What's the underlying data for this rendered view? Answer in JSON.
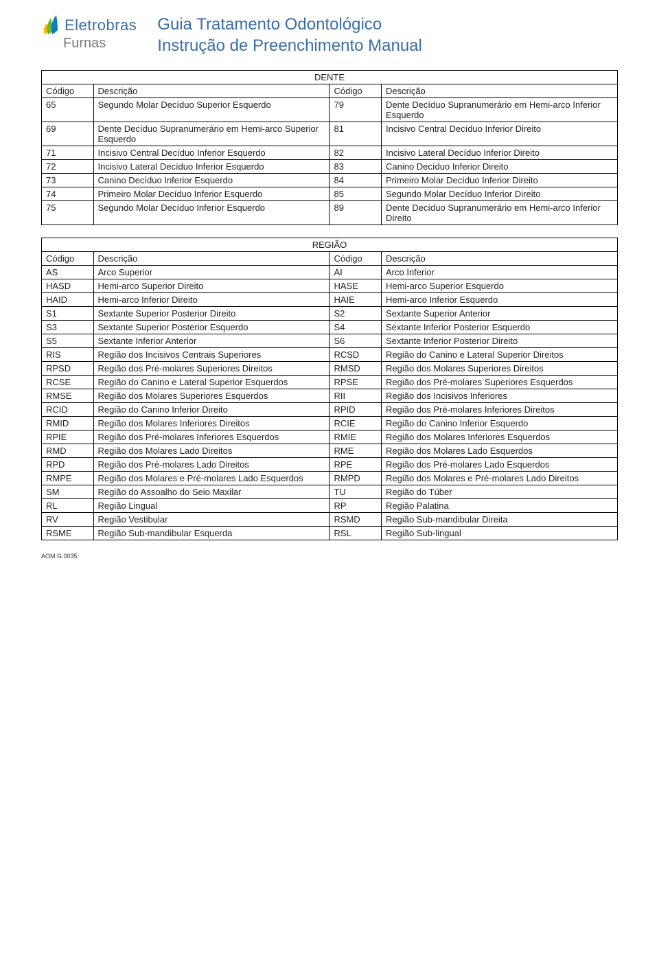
{
  "brand": {
    "main": "Eletrobras",
    "sub": "Furnas"
  },
  "doc": {
    "title1": "Guia Tratamento Odontológico",
    "title2": "Instrução de Preenchimento Manual"
  },
  "logo_colors": {
    "yellow": "#f6b400",
    "green": "#6fb62c",
    "blue": "#0a7fc2"
  },
  "table1": {
    "title": "DENTE",
    "headers": [
      "Código",
      "Descrição",
      "Código",
      "Descrição"
    ],
    "rows": [
      [
        "65",
        "Segundo Molar Decíduo Superior Esquerdo",
        "79",
        "Dente Decíduo Supranumerário em Hemi-arco Inferior Esquerdo"
      ],
      [
        "69",
        "Dente Decíduo Supranumerário em Hemi-arco Superior Esquerdo",
        "81",
        "Incisivo Central Decíduo Inferior Direito"
      ],
      [
        "71",
        "Incisivo Central Decíduo Inferior Esquerdo",
        "82",
        "Incisivo Lateral Decíduo Inferior Direito"
      ],
      [
        "72",
        "Incisivo Lateral Decíduo Inferior Esquerdo",
        "83",
        "Canino Decíduo Inferior Direito"
      ],
      [
        "73",
        "Canino Decíduo Inferior Esquerdo",
        "84",
        "Primeiro Molar Decíduo Inferior Direito"
      ],
      [
        "74",
        "Primeiro Molar Decíduo Inferior Esquerdo",
        "85",
        "Segundo Molar Decíduo Inferior Direito"
      ],
      [
        "75",
        "Segundo Molar Decíduo Inferior Esquerdo",
        "89",
        "Dente Decíduo Supranumerário em Hemi-arco Inferior Direito"
      ]
    ]
  },
  "table2": {
    "title": "REGIÃO",
    "headers": [
      "Código",
      "Descrição",
      "Código",
      "Descrição"
    ],
    "rows": [
      [
        "AS",
        "Arco Superior",
        "AI",
        "Arco Inferior"
      ],
      [
        "HASD",
        "Hemi-arco Superior Direito",
        "HASE",
        "Hemi-arco Superior Esquerdo"
      ],
      [
        "HAID",
        "Hemi-arco Inferior Direito",
        "HAIE",
        "Hemi-arco Inferior Esquerdo"
      ],
      [
        "S1",
        "Sextante Superior Posterior Direito",
        "S2",
        "Sextante Superior Anterior"
      ],
      [
        "S3",
        "Sextante Superior Posterior Esquerdo",
        "S4",
        "Sextante Inferior Posterior Esquerdo"
      ],
      [
        "S5",
        "Sextante Inferior Anterior",
        "S6",
        "Sextante Inferior Posterior Direito"
      ],
      [
        "RIS",
        "Região dos Incisivos Centrais Superiores",
        "RCSD",
        "Região do Canino e Lateral Superior Direitos"
      ],
      [
        "RPSD",
        "Região dos Pré-molares Superiores Direitos",
        "RMSD",
        "Região dos Molares Superiores Direitos"
      ],
      [
        "RCSE",
        "Região do Canino e Lateral Superior Esquerdos",
        "RPSE",
        "Região dos Pré-molares Superiores Esquerdos"
      ],
      [
        "RMSE",
        "Região dos Molares Superiores Esquerdos",
        "RII",
        "Região dos Incisivos Inferiores"
      ],
      [
        "RCID",
        "Região do Canino Inferior Direito",
        "RPID",
        "Região dos Pré-molares Inferiores Direitos"
      ],
      [
        "RMID",
        "Região dos Molares Inferiores Direitos",
        "RCIE",
        "Região do Canino Inferior Esquerdo"
      ],
      [
        "RPIE",
        "Região dos Pré-molares Inferiores Esquerdos",
        "RMIE",
        "Região dos Molares Inferiores Esquerdos"
      ],
      [
        "RMD",
        "Região dos Molares Lado Direitos",
        "RME",
        "Região dos Molares Lado Esquerdos"
      ],
      [
        "RPD",
        "Região dos Pré-molares Lado Direitos",
        "RPE",
        "Região dos Pré-molares Lado Esquerdos"
      ],
      [
        "RMPE",
        "Região dos Molares e Pré-molares Lado Esquerdos",
        "RMPD",
        "Região dos Molares e Pré-molares Lado Direitos"
      ],
      [
        "SM",
        "Região do Assoalho do Seio Maxilar",
        "TU",
        "Região do Túber"
      ],
      [
        "RL",
        "Região Lingual",
        "RP",
        "Região Palatina"
      ],
      [
        "RV",
        "Região Vestibular",
        "RSMD",
        "Região Sub-mandibular Direita"
      ],
      [
        "RSME",
        "Região Sub-mandibular Esquerda",
        "RSL",
        "Região Sub-lingual"
      ]
    ]
  },
  "footer": "AOM.G.0035"
}
